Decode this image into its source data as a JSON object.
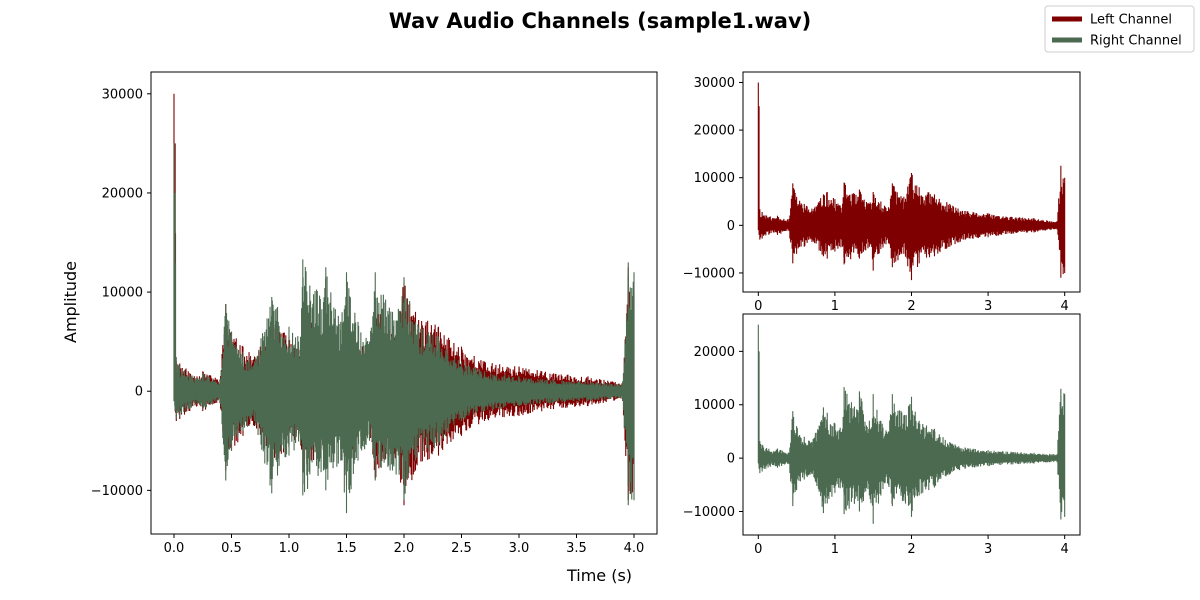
{
  "colors": {
    "left": "#7f0000",
    "right": "#4c6a50"
  },
  "chart_data": [
    {
      "type": "line",
      "title": "Wav Audio Channels (sample1.wav)",
      "xlabel": "Time (s)",
      "ylabel": "Amplitude",
      "xlim": [
        -0.2,
        4.2
      ],
      "ylim": [
        -14400,
        32200
      ],
      "xticks": [
        0.0,
        0.5,
        1.0,
        1.5,
        2.0,
        2.5,
        3.0,
        3.5,
        4.0
      ],
      "xtick_labels": [
        "0.0",
        "0.5",
        "1.0",
        "1.5",
        "2.0",
        "2.5",
        "3.0",
        "3.5",
        "4.0"
      ],
      "yticks": [
        -10000,
        0,
        10000,
        20000,
        30000
      ],
      "ytick_labels": [
        "−10000",
        "0",
        "10000",
        "20000",
        "30000"
      ],
      "legend": {
        "placement": "top-right",
        "entries": [
          "Left Channel",
          "Right Channel"
        ]
      },
      "series": [
        {
          "name": "Left Channel",
          "envelope_x": [
            0.0,
            0.01,
            0.02,
            0.05,
            0.2,
            0.25,
            0.4,
            0.45,
            0.5,
            0.6,
            0.7,
            0.85,
            0.9,
            1.0,
            1.1,
            1.12,
            1.3,
            1.32,
            1.45,
            1.5,
            1.6,
            1.7,
            1.75,
            1.9,
            2.0,
            2.1,
            2.3,
            2.5,
            2.7,
            3.0,
            3.3,
            3.6,
            3.9,
            3.95,
            4.0
          ],
          "envelope_max": [
            30000,
            25000,
            3000,
            2800,
            1500,
            2000,
            1200,
            8800,
            6000,
            4500,
            3500,
            6500,
            7000,
            5500,
            4500,
            9000,
            6000,
            7500,
            4500,
            7000,
            5000,
            3800,
            8800,
            6000,
            11000,
            8000,
            6500,
            4500,
            3000,
            2500,
            1800,
            1500,
            800,
            12500,
            10000
          ],
          "envelope_min": [
            -1000,
            -2000,
            -3000,
            -2800,
            -1500,
            -2000,
            -1200,
            -8000,
            -6000,
            -4500,
            -3500,
            -6500,
            -7000,
            -5500,
            -4500,
            -8200,
            -6000,
            -7000,
            -4500,
            -9500,
            -5000,
            -3800,
            -8800,
            -6000,
            -11500,
            -8000,
            -6500,
            -4500,
            -3000,
            -2500,
            -1800,
            -1500,
            -800,
            -11000,
            -10000
          ]
        },
        {
          "name": "Right Channel",
          "envelope_x": [
            0.0,
            0.01,
            0.02,
            0.05,
            0.2,
            0.25,
            0.4,
            0.45,
            0.5,
            0.6,
            0.7,
            0.85,
            0.9,
            1.0,
            1.1,
            1.12,
            1.3,
            1.32,
            1.45,
            1.5,
            1.6,
            1.7,
            1.75,
            1.9,
            2.0,
            2.1,
            2.3,
            2.5,
            2.7,
            3.0,
            3.3,
            3.6,
            3.9,
            3.95,
            4.0
          ],
          "envelope_max": [
            25000,
            20000,
            3000,
            2500,
            1300,
            1800,
            1000,
            8800,
            6000,
            4000,
            3000,
            9500,
            8500,
            6500,
            5500,
            13300,
            9000,
            12500,
            7000,
            12000,
            7000,
            5000,
            12000,
            8000,
            11500,
            7000,
            5500,
            3000,
            2000,
            1500,
            1200,
            1000,
            700,
            13000,
            12000
          ],
          "envelope_min": [
            -1000,
            -2000,
            -2800,
            -2500,
            -1300,
            -1800,
            -1000,
            -9000,
            -6000,
            -4000,
            -3000,
            -10300,
            -8500,
            -6500,
            -5500,
            -10500,
            -8000,
            -10000,
            -7000,
            -12300,
            -7000,
            -5000,
            -9000,
            -8000,
            -11000,
            -7000,
            -5500,
            -3000,
            -2000,
            -1500,
            -1200,
            -1000,
            -700,
            -11500,
            -11000
          ]
        }
      ]
    },
    {
      "type": "line",
      "title": "",
      "xlim": [
        -0.2,
        4.2
      ],
      "ylim": [
        -14000,
        32200
      ],
      "xticks": [
        0,
        1,
        2,
        3,
        4
      ],
      "xtick_labels": [
        "0",
        "1",
        "2",
        "3",
        "4"
      ],
      "yticks": [
        -10000,
        0,
        10000,
        20000,
        30000
      ],
      "ytick_labels": [
        "−10000",
        "0",
        "10000",
        "20000",
        "30000"
      ],
      "series": [
        {
          "name": "Left Channel"
        }
      ]
    },
    {
      "type": "line",
      "title": "",
      "xlim": [
        -0.2,
        4.2
      ],
      "ylim": [
        -14400,
        27000
      ],
      "xticks": [
        0,
        1,
        2,
        3,
        4
      ],
      "xtick_labels": [
        "0",
        "1",
        "2",
        "3",
        "4"
      ],
      "yticks": [
        -10000,
        0,
        10000,
        20000
      ],
      "ytick_labels": [
        "−10000",
        "0",
        "10000",
        "20000"
      ],
      "series": [
        {
          "name": "Right Channel"
        }
      ]
    }
  ]
}
